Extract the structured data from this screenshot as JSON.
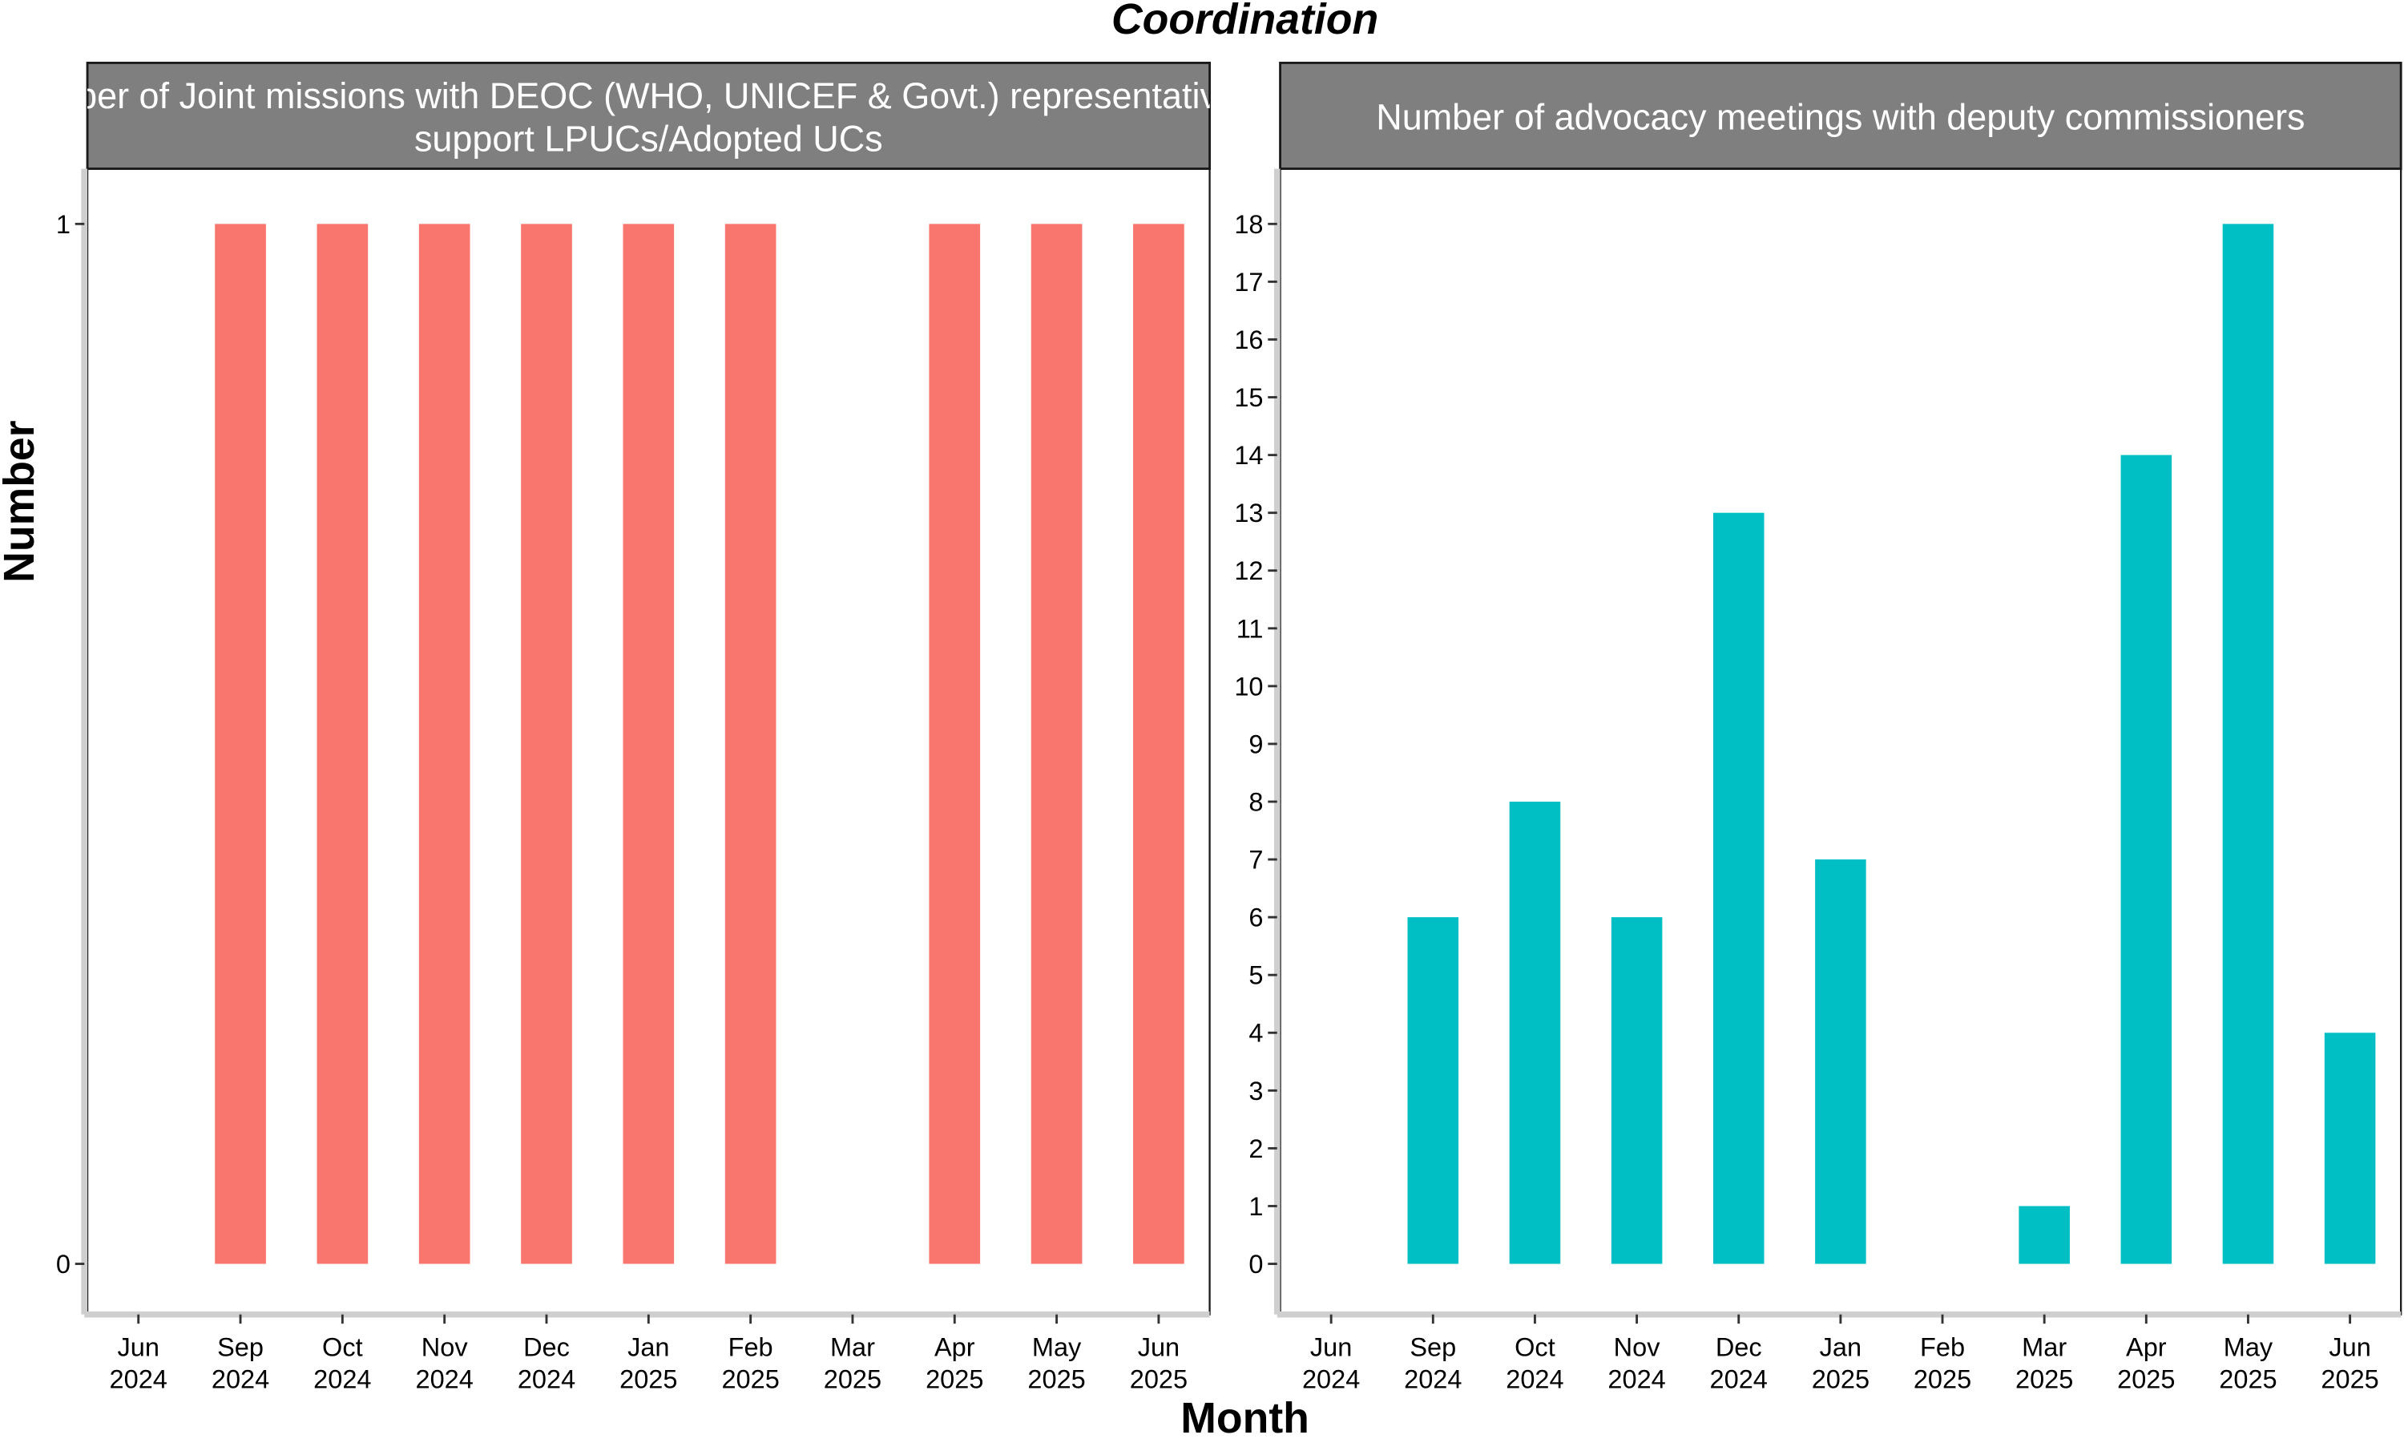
{
  "chart_data": {
    "type": "bar",
    "title": "Coordination",
    "xlabel": "Month",
    "ylabel": "Number",
    "categories": [
      [
        "Jun",
        "2024"
      ],
      [
        "Sep",
        "2024"
      ],
      [
        "Oct",
        "2024"
      ],
      [
        "Nov",
        "2024"
      ],
      [
        "Dec",
        "2024"
      ],
      [
        "Jan",
        "2025"
      ],
      [
        "Feb",
        "2025"
      ],
      [
        "Mar",
        "2025"
      ],
      [
        "Apr",
        "2025"
      ],
      [
        "May",
        "2025"
      ],
      [
        "Jun",
        "2025"
      ]
    ],
    "panels": [
      {
        "strip": [
          "Number of Joint missions with DEOC (WHO, UNICEF & Govt.) representatives to",
          "support LPUCs/Adopted UCs"
        ],
        "color": "#F8766D",
        "values": [
          0,
          1,
          1,
          1,
          1,
          1,
          1,
          0,
          1,
          1,
          1
        ],
        "ylim": [
          0,
          1
        ],
        "yticks": [
          0,
          1
        ]
      },
      {
        "strip": [
          "Number of advocacy meetings with deputy commissioners"
        ],
        "color": "#00BFC4",
        "values": [
          0,
          6,
          8,
          6,
          13,
          7,
          0,
          1,
          14,
          18,
          4
        ],
        "ylim": [
          0,
          18
        ],
        "yticks": [
          0,
          1,
          2,
          3,
          4,
          5,
          6,
          7,
          8,
          9,
          10,
          11,
          12,
          13,
          14,
          15,
          16,
          17,
          18
        ]
      }
    ],
    "grid": false,
    "legend": "none"
  }
}
